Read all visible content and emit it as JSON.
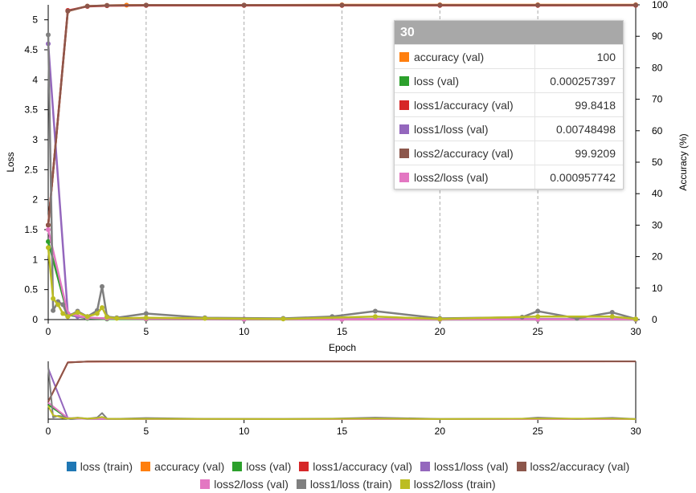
{
  "chart_data": {
    "type": "line",
    "xlabel": "Epoch",
    "ylabel_left": "Loss",
    "ylabel_right": "Accuracy (%)",
    "xlim": [
      0,
      30
    ],
    "ylim_left": [
      0,
      5.25
    ],
    "ylim_right": [
      0,
      100
    ],
    "x_ticks": [
      0,
      5,
      10,
      15,
      20,
      25,
      30
    ],
    "y_left_ticks": [
      0,
      0.5,
      1,
      1.5,
      2,
      2.5,
      3,
      3.5,
      4,
      4.5,
      5
    ],
    "y_right_ticks": [
      0,
      10,
      20,
      30,
      40,
      50,
      60,
      70,
      80,
      90,
      100
    ],
    "grid": "vertical dashed at x ticks",
    "series": [
      {
        "name": "loss (train)",
        "color": "#1f77b4",
        "axis": "left",
        "x": [],
        "y": []
      },
      {
        "name": "accuracy (val)",
        "color": "#ff7f0e",
        "axis": "right",
        "x": [
          0,
          1,
          2,
          3,
          4,
          5,
          10,
          15,
          20,
          25,
          30
        ],
        "y": [
          30,
          98,
          99.6,
          99.8,
          99.9,
          99.9,
          99.9,
          100,
          100,
          100,
          100
        ]
      },
      {
        "name": "loss (val)",
        "color": "#2ca02c",
        "axis": "left",
        "x": [
          0,
          1,
          2,
          3,
          5,
          10,
          15,
          20,
          25,
          30
        ],
        "y": [
          1.3,
          0.08,
          0.02,
          0.01,
          0.005,
          0.002,
          0.001,
          0.0008,
          0.0005,
          0.000257397
        ]
      },
      {
        "name": "loss1/accuracy (val)",
        "color": "#d62728",
        "axis": "right",
        "x": [
          0,
          1,
          2,
          3,
          5,
          10,
          15,
          20,
          25,
          30
        ],
        "y": [
          30,
          98.2,
          99.5,
          99.7,
          99.8,
          99.8,
          99.8,
          99.8,
          99.8,
          99.8418
        ]
      },
      {
        "name": "loss1/loss (val)",
        "color": "#9467bd",
        "axis": "left",
        "x": [
          0,
          1,
          1.5,
          2,
          3,
          5,
          10,
          15,
          20,
          25,
          30
        ],
        "y": [
          4.6,
          0.1,
          0.05,
          0.03,
          0.02,
          0.015,
          0.01,
          0.009,
          0.008,
          0.008,
          0.00748498
        ]
      },
      {
        "name": "loss2/accuracy (val)",
        "color": "#8c564b",
        "axis": "right",
        "x": [
          0,
          1,
          2,
          3,
          5,
          10,
          15,
          20,
          25,
          30
        ],
        "y": [
          30,
          98,
          99.6,
          99.8,
          99.9,
          99.9,
          99.9,
          99.9,
          99.9,
          99.9209
        ]
      },
      {
        "name": "loss2/loss (val)",
        "color": "#e377c2",
        "axis": "left",
        "x": [
          0,
          1,
          2,
          3,
          5,
          10,
          15,
          20,
          25,
          30
        ],
        "y": [
          1.5,
          0.1,
          0.03,
          0.02,
          0.01,
          0.005,
          0.002,
          0.001,
          0.001,
          0.000957742
        ]
      },
      {
        "name": "loss1/loss (train)",
        "color": "#7f7f7f",
        "axis": "left",
        "x": [
          0,
          0.25,
          0.5,
          0.75,
          1,
          1.5,
          2,
          2.5,
          2.75,
          3,
          3.5,
          5,
          8,
          12,
          14.5,
          16.7,
          20,
          24.2,
          25,
          27,
          28.8,
          30
        ],
        "y": [
          4.75,
          0.15,
          0.3,
          0.25,
          0.05,
          0.14,
          0.05,
          0.15,
          0.55,
          0.05,
          0.03,
          0.1,
          0.03,
          0.02,
          0.05,
          0.14,
          0.02,
          0.04,
          0.14,
          0.02,
          0.12,
          0.01
        ]
      },
      {
        "name": "loss2/loss (train)",
        "color": "#bcbd22",
        "axis": "left",
        "x": [
          0,
          0.25,
          0.5,
          0.75,
          1,
          1.5,
          2,
          2.5,
          2.75,
          3,
          3.5,
          5,
          8,
          12,
          16.7,
          20,
          25,
          28.8,
          30
        ],
        "y": [
          1.2,
          0.35,
          0.25,
          0.1,
          0.05,
          0.12,
          0.05,
          0.1,
          0.2,
          0.04,
          0.02,
          0.03,
          0.02,
          0.01,
          0.05,
          0.01,
          0.05,
          0.05,
          0.01
        ]
      }
    ]
  },
  "tooltip": {
    "header": "30",
    "rows": [
      {
        "name": "accuracy (val)",
        "value": "100",
        "color": "#ff7f0e"
      },
      {
        "name": "loss (val)",
        "value": "0.000257397",
        "color": "#2ca02c"
      },
      {
        "name": "loss1/accuracy (val)",
        "value": "99.8418",
        "color": "#d62728"
      },
      {
        "name": "loss1/loss (val)",
        "value": "0.00748498",
        "color": "#9467bd"
      },
      {
        "name": "loss2/accuracy (val)",
        "value": "99.9209",
        "color": "#8c564b"
      },
      {
        "name": "loss2/loss (val)",
        "value": "0.000957742",
        "color": "#e377c2"
      }
    ]
  },
  "legend": {
    "rows": [
      [
        {
          "name": "loss (train)",
          "color": "#1f77b4"
        },
        {
          "name": "accuracy (val)",
          "color": "#ff7f0e"
        },
        {
          "name": "loss (val)",
          "color": "#2ca02c"
        },
        {
          "name": "loss1/accuracy (val)",
          "color": "#d62728"
        },
        {
          "name": "loss1/loss (val)",
          "color": "#9467bd"
        },
        {
          "name": "loss2/accuracy (val)",
          "color": "#8c564b"
        }
      ],
      [
        {
          "name": "loss2/loss (val)",
          "color": "#e377c2"
        },
        {
          "name": "loss1/loss (train)",
          "color": "#7f7f7f"
        },
        {
          "name": "loss2/loss (train)",
          "color": "#bcbd22"
        }
      ]
    ]
  }
}
